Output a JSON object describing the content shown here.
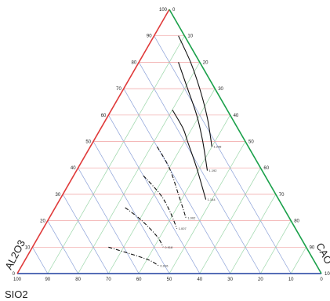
{
  "chart_data": {
    "type": "ternary-contour",
    "components": [
      {
        "name": "SIO2",
        "edge_color": "#1f3f9f",
        "grid_color": "#8aa0d8"
      },
      {
        "name": "AL2O3",
        "edge_color": "#e03a3a",
        "grid_color": "#f0a0a0"
      },
      {
        "name": "CAO",
        "edge_color": "#1aa04a",
        "grid_color": "#9ad6a8"
      }
    ],
    "axis_titles": {
      "bottom": "SIO2",
      "left": "AL2O3",
      "right": "CAO"
    },
    "ticks": {
      "bottom_sio2": [
        "100",
        "90",
        "80",
        "70",
        "60",
        "50",
        "40",
        "30",
        "20",
        "10",
        "0"
      ],
      "left_al2o3": [
        "0",
        "10",
        "20",
        "30",
        "40",
        "50",
        "60",
        "70",
        "80",
        "90",
        "100"
      ],
      "right_cao": [
        "0",
        "10",
        "20",
        "30",
        "40",
        "50",
        "60",
        "70",
        "80",
        "90",
        "100"
      ]
    },
    "grid_step": 10,
    "isolines": [
      {
        "label": "1.248",
        "style": "solid",
        "points": [
          [
            2,
            90,
            8
          ],
          [
            3,
            80,
            17
          ],
          [
            5,
            70,
            25
          ],
          [
            8,
            59,
            33
          ],
          [
            12,
            48,
            40
          ]
        ]
      },
      {
        "label": "1.192",
        "style": "solid",
        "points": [
          [
            7,
            80,
            13
          ],
          [
            9,
            70,
            21
          ],
          [
            11,
            60,
            29
          ],
          [
            14,
            50,
            36
          ],
          [
            18,
            39,
            43
          ]
        ]
      },
      {
        "label": "1.144",
        "style": "solid",
        "points": [
          [
            18,
            62,
            20
          ],
          [
            18,
            55,
            27
          ],
          [
            19,
            50,
            31
          ],
          [
            21,
            40,
            39
          ],
          [
            24,
            28,
            48
          ]
        ]
      },
      {
        "label": "1.002",
        "style": "dashed",
        "points": [
          [
            30,
            48,
            22
          ],
          [
            30,
            40,
            30
          ],
          [
            32,
            30,
            38
          ],
          [
            34,
            21,
            45
          ]
        ]
      },
      {
        "label": "1.007",
        "style": "dashed",
        "points": [
          [
            40,
            37,
            23
          ],
          [
            38,
            30,
            32
          ],
          [
            38,
            24,
            38
          ],
          [
            39,
            17,
            44
          ]
        ]
      },
      {
        "label": "0.918",
        "style": "dashed",
        "points": [
          [
            52,
            25,
            23
          ],
          [
            49,
            20,
            31
          ],
          [
            47,
            14,
            39
          ],
          [
            47,
            10,
            43
          ]
        ]
      },
      {
        "label": "0.916",
        "style": "dashed",
        "points": [
          [
            65,
            10,
            25
          ],
          [
            58,
            7,
            35
          ],
          [
            54,
            5,
            41
          ],
          [
            52,
            3,
            45
          ]
        ]
      }
    ]
  }
}
